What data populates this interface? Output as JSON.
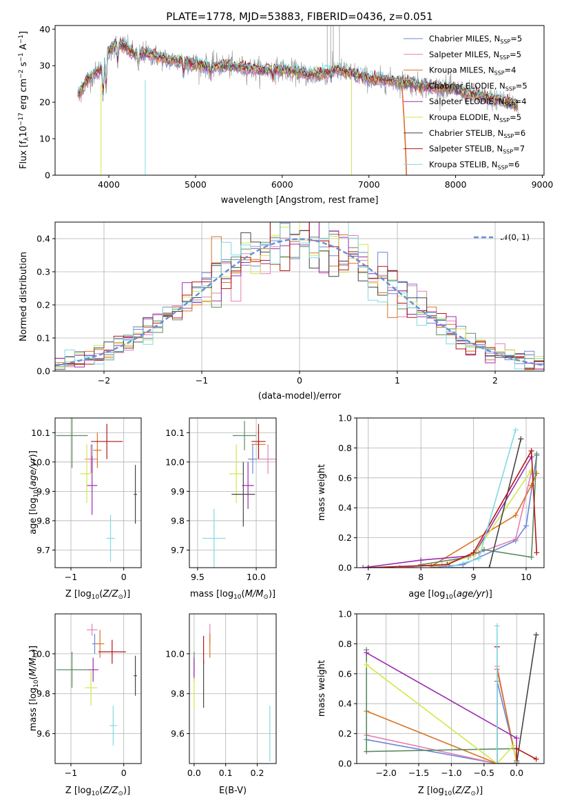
{
  "colors": {
    "Chabrier MILES": "#6a85d9",
    "Salpeter MILES": "#e57fae",
    "Kroupa MILES": "#d8731f",
    "Chabrier ELODIE": "#5b8a62",
    "Salpeter ELODIE": "#9b2aad",
    "Kroupa ELODIE": "#cfe84a",
    "Chabrier STELIB": "#444444",
    "Salpeter STELIB": "#b01515",
    "Kroupa STELIB": "#7fd9e3",
    "normal_curve": "#6a8fd6"
  },
  "chart_data": [
    {
      "type": "line",
      "title": "PLATE=1778, MJD=53883, FIBERID=0436, z=0.051",
      "xlabel": "wavelength [Angstrom, rest frame]",
      "ylabel": "Flux [f",
      "xlim": [
        3380,
        9020
      ],
      "ylim": [
        0,
        41
      ],
      "xticks": [
        4000,
        5000,
        6000,
        7000,
        8000,
        9000
      ],
      "yticks": [
        0,
        10,
        20,
        30,
        40
      ],
      "grid": false,
      "legend_position": "upper-right",
      "legend": [
        {
          "name": "Chabrier MILES",
          "nssp": "5"
        },
        {
          "name": "Salpeter MILES",
          "nssp": "5"
        },
        {
          "name": "Kroupa MILES",
          "nssp": "4"
        },
        {
          "name": "Chabrier ELODIE",
          "nssp": "5"
        },
        {
          "name": "Salpeter ELODIE",
          "nssp": "4"
        },
        {
          "name": "Kroupa ELODIE",
          "nssp": "5"
        },
        {
          "name": "Chabrier STELIB",
          "nssp": "6"
        },
        {
          "name": "Salpeter STELIB",
          "nssp": "7"
        },
        {
          "name": "Kroupa STELIB",
          "nssp": "6"
        }
      ],
      "spectrum_continuum": [
        [
          3650,
          22
        ],
        [
          3750,
          26
        ],
        [
          3850,
          28
        ],
        [
          3950,
          30
        ],
        [
          4000,
          34
        ],
        [
          4100,
          36
        ],
        [
          4200,
          35
        ],
        [
          4300,
          33
        ],
        [
          4400,
          33.5
        ],
        [
          4500,
          33
        ],
        [
          4700,
          31.5
        ],
        [
          4900,
          31
        ],
        [
          5100,
          30
        ],
        [
          5300,
          30
        ],
        [
          5500,
          29.5
        ],
        [
          5700,
          29
        ],
        [
          5900,
          29
        ],
        [
          6100,
          28.5
        ],
        [
          6300,
          27.5
        ],
        [
          6500,
          28
        ],
        [
          6600,
          29
        ],
        [
          6800,
          28
        ],
        [
          7000,
          26.5
        ],
        [
          7200,
          26
        ],
        [
          7400,
          25.5
        ],
        [
          7600,
          24.5
        ],
        [
          7800,
          24
        ],
        [
          8000,
          23.5
        ],
        [
          8200,
          22
        ],
        [
          8400,
          21
        ],
        [
          8600,
          20
        ],
        [
          8700,
          19.5
        ]
      ]
    },
    {
      "type": "step",
      "xlabel": "(data-model)/error",
      "ylabel": "Normed distribution",
      "xlim": [
        -2.5,
        2.5
      ],
      "ylim": [
        0,
        0.45
      ],
      "xticks": [
        -2,
        -1,
        0,
        1,
        2
      ],
      "yticks": [
        0.0,
        0.1,
        0.2,
        0.3,
        0.4
      ],
      "grid": true,
      "legend_position": "upper-right",
      "legend_label": "𝒩(0, 1)",
      "bin_width": 0.1
    },
    {
      "type": "errorbar",
      "xlabel": "Z [log",
      "ylabel": "age  [log",
      "xlim": [
        -1.3,
        0.33
      ],
      "ylim": [
        9.64,
        10.15
      ],
      "xticks": [
        -1,
        0
      ],
      "yticks": [
        9.7,
        9.8,
        9.9,
        10.0,
        10.1
      ],
      "grid": true,
      "points": [
        {
          "series": "Chabrier MILES",
          "x": -0.6,
          "y": 10.01,
          "xerr": 0.05,
          "yerr": 0.05
        },
        {
          "series": "Salpeter MILES",
          "x": -0.62,
          "y": 10.01,
          "xerr": 0.12,
          "yerr": 0.05
        },
        {
          "series": "Kroupa MILES",
          "x": -0.5,
          "y": 10.04,
          "xerr": 0.08,
          "yerr": 0.06
        },
        {
          "series": "Chabrier ELODIE",
          "x": -0.98,
          "y": 10.09,
          "xerr": 0.3,
          "yerr": 0.11
        },
        {
          "series": "Salpeter ELODIE",
          "x": -0.6,
          "y": 9.92,
          "xerr": 0.1,
          "yerr": 0.1
        },
        {
          "series": "Kroupa ELODIE",
          "x": -0.7,
          "y": 9.96,
          "xerr": 0.12,
          "yerr": 0.1
        },
        {
          "series": "Chabrier STELIB",
          "x": 0.22,
          "y": 9.89,
          "xerr": 0.03,
          "yerr": 0.1
        },
        {
          "series": "Salpeter STELIB",
          "x": -0.32,
          "y": 10.07,
          "xerr": 0.3,
          "yerr": 0.06
        },
        {
          "series": "Kroupa STELIB",
          "x": -0.25,
          "y": 9.74,
          "xerr": 0.08,
          "yerr": 0.08
        }
      ]
    },
    {
      "type": "errorbar",
      "xlabel": "mass [log",
      "ylabel": "",
      "xlim": [
        9.43,
        10.17
      ],
      "ylim": [
        9.64,
        10.15
      ],
      "xticks": [
        9.5,
        10.0
      ],
      "yticks": [
        9.7,
        9.8,
        9.9,
        10.0,
        10.1
      ],
      "grid": true,
      "points": [
        {
          "series": "Chabrier MILES",
          "x": 9.97,
          "y": 10.01,
          "xerr": 0.04,
          "yerr": 0.05
        },
        {
          "series": "Salpeter MILES",
          "x": 10.1,
          "y": 10.01,
          "xerr": 0.08,
          "yerr": 0.05
        },
        {
          "series": "Kroupa MILES",
          "x": 10.02,
          "y": 10.06,
          "xerr": 0.06,
          "yerr": 0.05
        },
        {
          "series": "Chabrier ELODIE",
          "x": 9.9,
          "y": 10.09,
          "xerr": 0.1,
          "yerr": 0.05
        },
        {
          "series": "Salpeter ELODIE",
          "x": 9.93,
          "y": 9.92,
          "xerr": 0.05,
          "yerr": 0.08
        },
        {
          "series": "Kroupa ELODIE",
          "x": 9.83,
          "y": 9.96,
          "xerr": 0.06,
          "yerr": 0.1
        },
        {
          "series": "Chabrier STELIB",
          "x": 9.89,
          "y": 9.89,
          "xerr": 0.1,
          "yerr": 0.11
        },
        {
          "series": "Salpeter STELIB",
          "x": 10.02,
          "y": 10.07,
          "xerr": 0.06,
          "yerr": 0.06
        },
        {
          "series": "Kroupa STELIB",
          "x": 9.64,
          "y": 9.74,
          "xerr": 0.1,
          "yerr": 0.1
        }
      ]
    },
    {
      "type": "line",
      "xlabel": "age  [log",
      "ylabel": "mass weight",
      "xlim": [
        6.78,
        10.34
      ],
      "ylim": [
        0,
        1
      ],
      "xticks": [
        7,
        8,
        9,
        10
      ],
      "yticks": [
        0.0,
        0.2,
        0.4,
        0.6,
        0.8,
        1.0
      ],
      "grid": true,
      "series": [
        {
          "name": "Chabrier MILES",
          "points": [
            [
              8.2,
              0.0
            ],
            [
              8.8,
              0.02
            ],
            [
              9.8,
              0.18
            ],
            [
              10.0,
              0.28
            ],
            [
              10.2,
              0.75
            ]
          ]
        },
        {
          "name": "Salpeter MILES",
          "points": [
            [
              7.6,
              0.0
            ],
            [
              8.4,
              0.02
            ],
            [
              9.1,
              0.1
            ],
            [
              9.8,
              0.19
            ],
            [
              10.1,
              0.64
            ]
          ]
        },
        {
          "name": "Kroupa MILES",
          "points": [
            [
              8.2,
              0.01
            ],
            [
              9.8,
              0.35
            ],
            [
              10.1,
              0.55
            ],
            [
              10.2,
              0.63
            ]
          ]
        },
        {
          "name": "Chabrier ELODIE",
          "points": [
            [
              8.0,
              0.02
            ],
            [
              8.9,
              0.07
            ],
            [
              9.2,
              0.12
            ],
            [
              10.1,
              0.07
            ],
            [
              10.2,
              0.76
            ]
          ]
        },
        {
          "name": "Salpeter ELODIE",
          "points": [
            [
              6.9,
              0.0
            ],
            [
              8.0,
              0.05
            ],
            [
              9.0,
              0.08
            ],
            [
              10.1,
              0.74
            ]
          ]
        },
        {
          "name": "Kroupa ELODIE",
          "points": [
            [
              8.3,
              0.01
            ],
            [
              9.0,
              0.08
            ],
            [
              10.1,
              0.65
            ]
          ]
        },
        {
          "name": "Chabrier STELIB",
          "points": [
            [
              8.5,
              0.0
            ],
            [
              9.3,
              0.0
            ],
            [
              9.9,
              0.86
            ]
          ]
        },
        {
          "name": "Salpeter STELIB",
          "points": [
            [
              7.0,
              0.0
            ],
            [
              8.5,
              0.02
            ],
            [
              9.0,
              0.1
            ],
            [
              10.1,
              0.78
            ],
            [
              10.2,
              0.1
            ]
          ]
        },
        {
          "name": "Kroupa STELIB",
          "points": [
            [
              8.5,
              0.0
            ],
            [
              9.1,
              0.06
            ],
            [
              9.8,
              0.92
            ]
          ]
        }
      ]
    },
    {
      "type": "errorbar",
      "xlabel": "Z [log",
      "ylabel": "mass [log",
      "xlim": [
        -1.3,
        0.33
      ],
      "ylim": [
        9.45,
        10.2
      ],
      "xticks": [
        -1,
        0
      ],
      "yticks": [
        9.6,
        9.8,
        10.0
      ],
      "grid": true,
      "points": [
        {
          "series": "Chabrier MILES",
          "x": -0.55,
          "y": 10.05,
          "xerr": 0.05,
          "yerr": 0.05
        },
        {
          "series": "Salpeter MILES",
          "x": -0.6,
          "y": 10.12,
          "xerr": 0.1,
          "yerr": 0.03
        },
        {
          "series": "Kroupa MILES",
          "x": -0.45,
          "y": 10.05,
          "xerr": 0.08,
          "yerr": 0.07
        },
        {
          "series": "Chabrier ELODIE",
          "x": -0.98,
          "y": 9.92,
          "xerr": 0.3,
          "yerr": 0.09
        },
        {
          "series": "Salpeter ELODIE",
          "x": -0.58,
          "y": 9.92,
          "xerr": 0.1,
          "yerr": 0.06
        },
        {
          "series": "Kroupa ELODIE",
          "x": -0.62,
          "y": 9.83,
          "xerr": 0.12,
          "yerr": 0.09
        },
        {
          "series": "Chabrier STELIB",
          "x": 0.22,
          "y": 9.89,
          "xerr": 0.03,
          "yerr": 0.1
        },
        {
          "series": "Salpeter STELIB",
          "x": -0.22,
          "y": 10.01,
          "xerr": 0.26,
          "yerr": 0.06
        },
        {
          "series": "Kroupa STELIB",
          "x": -0.2,
          "y": 9.64,
          "xerr": 0.07,
          "yerr": 0.1
        }
      ]
    },
    {
      "type": "errorbar",
      "xlabel": "E(B-V)",
      "ylabel": "",
      "xlim": [
        -0.015,
        0.26
      ],
      "ylim": [
        9.45,
        10.2
      ],
      "xticks": [
        0.0,
        0.1,
        0.2
      ],
      "yticks": [
        9.6,
        9.8,
        10.0
      ],
      "grid": true,
      "points": [
        {
          "series": "Chabrier MILES",
          "x": 0.0,
          "y": 9.92,
          "xerr": 0.0,
          "yerr": 0.05
        },
        {
          "series": "Salpeter MILES",
          "x": 0.05,
          "y": 10.1,
          "xerr": 0.0,
          "yerr": 0.05
        },
        {
          "series": "Kroupa MILES",
          "x": 0.05,
          "y": 10.04,
          "xerr": 0.0,
          "yerr": 0.06
        },
        {
          "series": "Chabrier ELODIE",
          "x": 0.0,
          "y": 9.95,
          "xerr": 0.0,
          "yerr": 0.06
        },
        {
          "series": "Salpeter ELODIE",
          "x": 0.0,
          "y": 9.92,
          "xerr": 0.0,
          "yerr": 0.06
        },
        {
          "series": "Kroupa ELODIE",
          "x": 0.0,
          "y": 9.8,
          "xerr": 0.0,
          "yerr": 0.08
        },
        {
          "series": "Chabrier STELIB",
          "x": 0.03,
          "y": 9.85,
          "xerr": 0.0,
          "yerr": 0.12
        },
        {
          "series": "Salpeter STELIB",
          "x": 0.03,
          "y": 10.02,
          "xerr": 0.0,
          "yerr": 0.07
        },
        {
          "series": "Kroupa STELIB",
          "x": 0.24,
          "y": 9.6,
          "xerr": 0.0,
          "yerr": 0.14
        }
      ]
    },
    {
      "type": "line",
      "xlabel": "Z [log",
      "ylabel": "mass weight",
      "xlim": [
        -2.45,
        0.42
      ],
      "ylim": [
        0,
        1
      ],
      "xticks": [
        -2.0,
        -1.5,
        -1.0,
        -0.5,
        0.0
      ],
      "yticks": [
        0.0,
        0.2,
        0.4,
        0.6,
        0.8,
        1.0
      ],
      "grid": true,
      "series": [
        {
          "name": "Chabrier MILES",
          "points": [
            [
              -2.3,
              0.16
            ],
            [
              -0.3,
              0.0
            ],
            [
              -0.3,
              0.55
            ],
            [
              0.0,
              0.02
            ]
          ]
        },
        {
          "name": "Salpeter MILES",
          "points": [
            [
              -2.3,
              0.19
            ],
            [
              -0.3,
              0.0
            ],
            [
              -0.3,
              0.65
            ],
            [
              0.0,
              0.0
            ]
          ]
        },
        {
          "name": "Kroupa MILES",
          "points": [
            [
              -2.3,
              0.35
            ],
            [
              -0.3,
              0.0
            ],
            [
              -0.3,
              0.63
            ],
            [
              0.0,
              0.01
            ]
          ]
        },
        {
          "name": "Chabrier ELODIE",
          "points": [
            [
              -2.3,
              0.76
            ],
            [
              -2.3,
              0.08
            ],
            [
              0.0,
              0.1
            ],
            [
              0.0,
              0.0
            ]
          ]
        },
        {
          "name": "Salpeter ELODIE",
          "points": [
            [
              -2.3,
              0.74
            ],
            [
              0.0,
              0.17
            ],
            [
              0.0,
              0.0
            ]
          ]
        },
        {
          "name": "Kroupa ELODIE",
          "points": [
            [
              -2.3,
              0.66
            ],
            [
              -0.3,
              0.0
            ],
            [
              -0.05,
              0.12
            ],
            [
              0.0,
              0.0
            ]
          ]
        },
        {
          "name": "Chabrier STELIB",
          "points": [
            [
              -0.3,
              0.0
            ],
            [
              0.0,
              0.0
            ],
            [
              0.3,
              0.86
            ]
          ]
        },
        {
          "name": "Salpeter STELIB",
          "points": [
            [
              -0.3,
              0.78
            ],
            [
              -0.3,
              0.0
            ],
            [
              0.0,
              0.0
            ],
            [
              0.0,
              0.1
            ],
            [
              0.3,
              0.03
            ]
          ]
        },
        {
          "name": "Kroupa STELIB",
          "points": [
            [
              -0.3,
              0.92
            ],
            [
              -0.3,
              0.0
            ],
            [
              0.0,
              0.0
            ]
          ]
        }
      ]
    }
  ]
}
